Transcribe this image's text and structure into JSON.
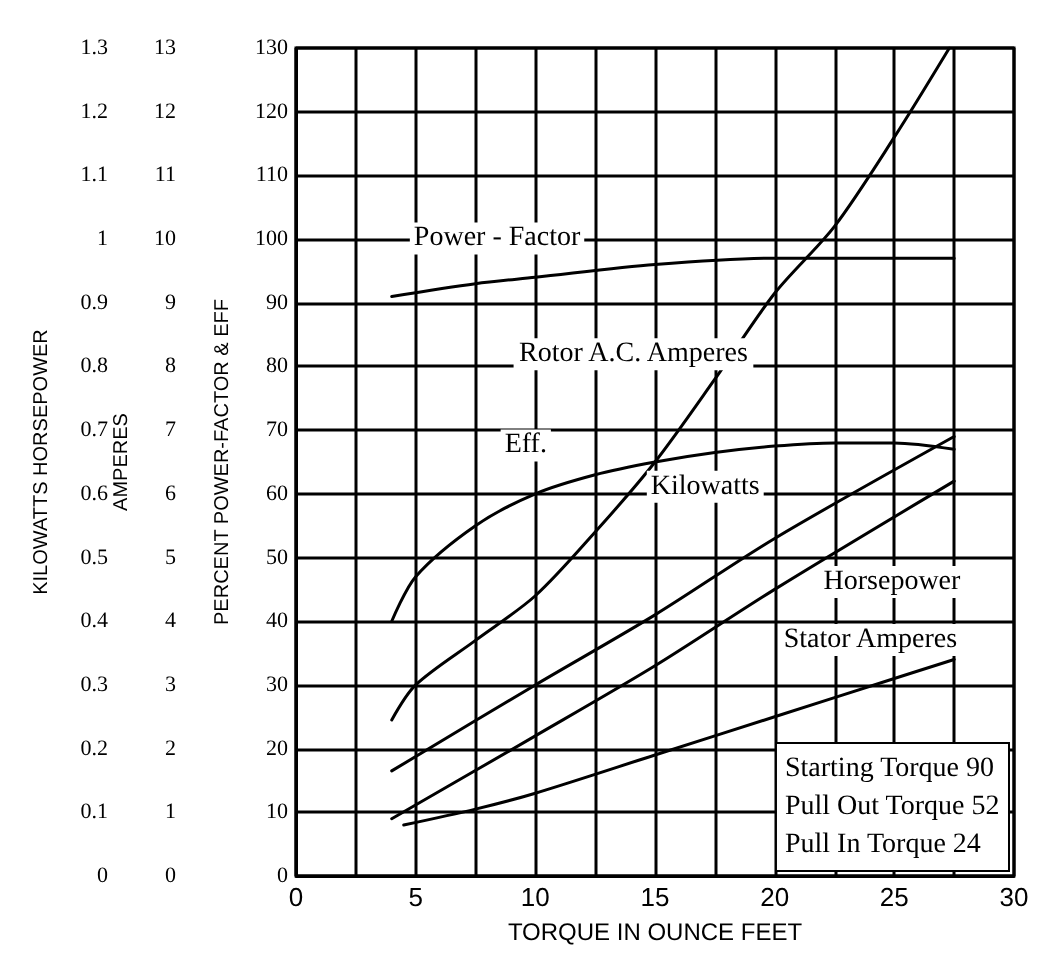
{
  "chart_data": {
    "type": "line",
    "xlabel": "TORQUE IN OUNCE FEET",
    "ylabel": "PERCENT POWER-FACTOR & EFF",
    "y2label": "AMPERES",
    "y3label": "KILOWATTS HORSEPOWER",
    "xlim": [
      0,
      30
    ],
    "xticks": [
      0,
      {
        "value": 2.5,
        "label": null
      },
      5,
      {
        "value": 7.5,
        "label": null
      },
      10,
      {
        "value": 12.5,
        "label": null
      },
      15,
      {
        "value": 17.5,
        "label": null
      },
      20,
      {
        "value": 22.5,
        "label": null
      },
      25,
      {
        "value": 27.5,
        "label": null
      },
      30
    ],
    "ylim": [
      0,
      130
    ],
    "yticks": [
      0,
      10,
      20,
      30,
      40,
      50,
      60,
      70,
      80,
      90,
      100,
      110,
      120,
      130
    ],
    "y2lim": [
      0,
      13
    ],
    "y2ticks": [
      0,
      1,
      2,
      3,
      4,
      5,
      6,
      7,
      8,
      9,
      10,
      11,
      12,
      13
    ],
    "y3lim": [
      0,
      1.3
    ],
    "y3ticks": [
      0,
      0.1,
      0.2,
      0.3,
      0.4,
      0.5,
      0.6,
      0.7,
      0.8,
      0.9,
      1.0,
      1.1,
      1.2,
      1.3
    ],
    "grid": true,
    "marker": "none",
    "series": [
      {
        "color": "#000000",
        "x": [
          4,
          7.5,
          10,
          15,
          20,
          27.5
        ],
        "values": [
          91,
          93,
          94,
          96,
          97,
          97
        ]
      },
      {
        "color": "#000000",
        "axis": "y2",
        "x": [
          4,
          5,
          7.5,
          10,
          12.5,
          15,
          17.5,
          20,
          22.5,
          25,
          27.3
        ],
        "values": [
          2.45,
          3.0,
          3.7,
          4.4,
          5.4,
          6.5,
          7.8,
          9.15,
          10.2,
          11.6,
          13.0
        ]
      },
      {
        "color": "#000000",
        "x": [
          4,
          5,
          7.5,
          10,
          12.5,
          15,
          17.5,
          20,
          22.5,
          25,
          27.5
        ],
        "values": [
          40,
          47,
          55,
          60,
          63,
          65,
          66.5,
          67.5,
          68,
          68,
          67
        ]
      },
      {
        "color": "#000000",
        "axis": "y3",
        "x": [
          4,
          10,
          15,
          20,
          27.5
        ],
        "values": [
          0.165,
          0.3,
          0.41,
          0.53,
          0.69
        ]
      },
      {
        "color": "#000000",
        "axis": "y3",
        "x": [
          4,
          10,
          15,
          20,
          27.5
        ],
        "values": [
          0.09,
          0.22,
          0.33,
          0.45,
          0.62
        ]
      },
      {
        "color": "#000000",
        "axis": "y2",
        "x": [
          4.5,
          7.5,
          10,
          15,
          20,
          25,
          27.5
        ],
        "values": [
          0.8,
          1.05,
          1.3,
          1.9,
          2.5,
          3.1,
          3.4
        ]
      }
    ],
    "annotations": [
      "Power - Factor",
      "Rotor A.C. Amperes",
      "Eff.",
      "Kilowatts",
      "Horsepower",
      "Stator Amperes",
      "Starting Torque 90\nPull Out Torque 52\nPull In Torque 24"
    ]
  }
}
